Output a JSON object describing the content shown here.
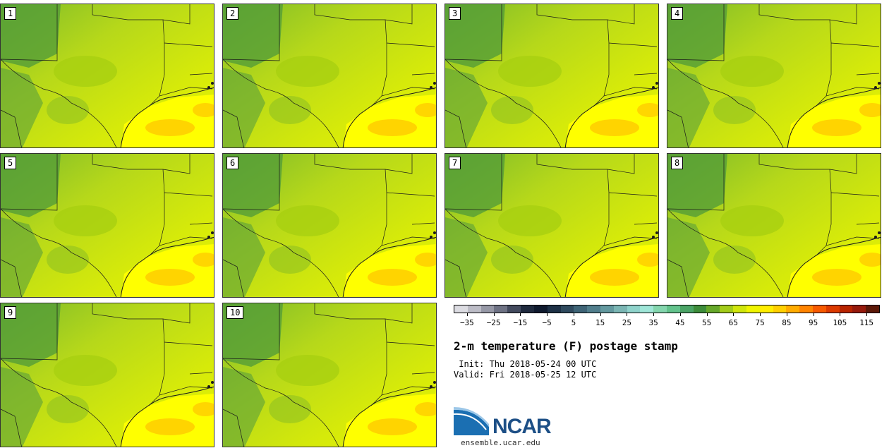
{
  "panels": [
    "1",
    "2",
    "3",
    "4",
    "5",
    "6",
    "7",
    "8",
    "9",
    "10"
  ],
  "colorbar": {
    "colors": [
      "#dcdce2",
      "#bcbcc6",
      "#9698a6",
      "#6e7284",
      "#434a5e",
      "#1f2a3e",
      "#0f1a2e",
      "#1e3146",
      "#2f4a5e",
      "#3f6476",
      "#517e8c",
      "#63999f",
      "#7bb6b4",
      "#8fd3cb",
      "#9fe6d8",
      "#84d6ae",
      "#63c38c",
      "#4ba466",
      "#3d8c3a",
      "#66a82a",
      "#a3cc1a",
      "#d0e60c",
      "#f0f500",
      "#ffee00",
      "#ffd000",
      "#ffac00",
      "#ff8400",
      "#f75a00",
      "#dc3a00",
      "#b82400",
      "#961a0c",
      "#5c1808"
    ],
    "tick_labels": [
      "−35",
      "−25",
      "−15",
      "−5",
      "5",
      "15",
      "25",
      "35",
      "45",
      "55",
      "65",
      "75",
      "85",
      "95",
      "105",
      "115"
    ]
  },
  "title": "2-m temperature (F) postage stamp",
  "init_label": " Init: Thu 2018-05-24 00 UTC",
  "valid_label": "Valid: Fri 2018-05-25 12 UTC",
  "logo_text": "NCAR",
  "url": "ensemble.ucar.edu"
}
